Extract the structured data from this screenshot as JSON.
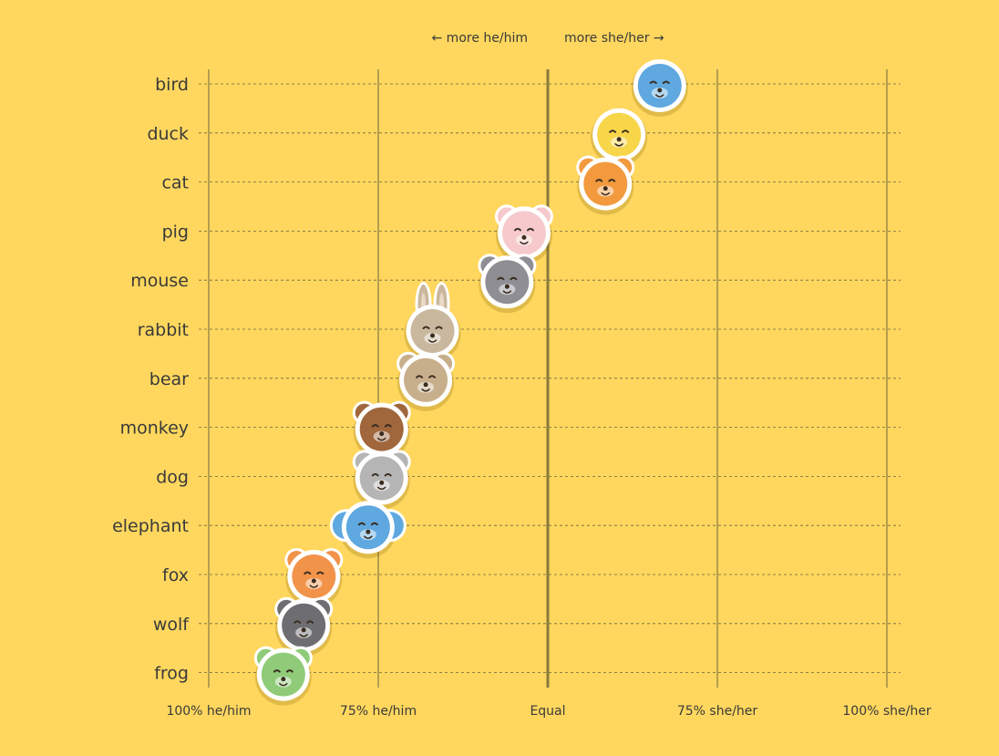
{
  "chart_data": {
    "type": "scatter",
    "title": "",
    "xlabel": "",
    "ylabel": "",
    "direction_left": "← more he/him",
    "direction_right": "more she/her →",
    "x_ticks": [
      {
        "value": -1,
        "label": "100% he/him"
      },
      {
        "value": -0.5,
        "label": "75% he/him"
      },
      {
        "value": 0,
        "label": "Equal"
      },
      {
        "value": 0.5,
        "label": "75% she/her"
      },
      {
        "value": 1,
        "label": "100% she/her"
      }
    ],
    "xlim": [
      -1,
      1
    ],
    "categories": [
      "bird",
      "duck",
      "cat",
      "pig",
      "mouse",
      "rabbit",
      "bear",
      "monkey",
      "dog",
      "elephant",
      "fox",
      "wolf",
      "frog"
    ],
    "points": [
      {
        "animal": "bird",
        "value": 0.33,
        "color": "#5FA8E0",
        "icon": "bird-icon"
      },
      {
        "animal": "duck",
        "value": 0.21,
        "color": "#F7D64A",
        "icon": "duck-icon"
      },
      {
        "animal": "cat",
        "value": 0.17,
        "color": "#F39A3E",
        "icon": "cat-icon"
      },
      {
        "animal": "pig",
        "value": -0.07,
        "color": "#F6C9CC",
        "icon": "pig-icon"
      },
      {
        "animal": "mouse",
        "value": -0.12,
        "color": "#8E8E94",
        "icon": "mouse-icon"
      },
      {
        "animal": "rabbit",
        "value": -0.34,
        "color": "#C9B79E",
        "icon": "rabbit-icon"
      },
      {
        "animal": "bear",
        "value": -0.36,
        "color": "#C8AF8C",
        "icon": "bear-icon"
      },
      {
        "animal": "monkey",
        "value": -0.49,
        "color": "#A0663C",
        "icon": "monkey-icon"
      },
      {
        "animal": "dog",
        "value": -0.49,
        "color": "#B5B5B5",
        "icon": "dog-icon"
      },
      {
        "animal": "elephant",
        "value": -0.53,
        "color": "#5FA8E0",
        "icon": "elephant-icon"
      },
      {
        "animal": "fox",
        "value": -0.69,
        "color": "#F2934A",
        "icon": "fox-icon"
      },
      {
        "animal": "wolf",
        "value": -0.72,
        "color": "#6E6E72",
        "icon": "wolf-icon"
      },
      {
        "animal": "frog",
        "value": -0.78,
        "color": "#8FCB78",
        "icon": "frog-icon"
      }
    ],
    "grid": true,
    "legend": "none"
  }
}
